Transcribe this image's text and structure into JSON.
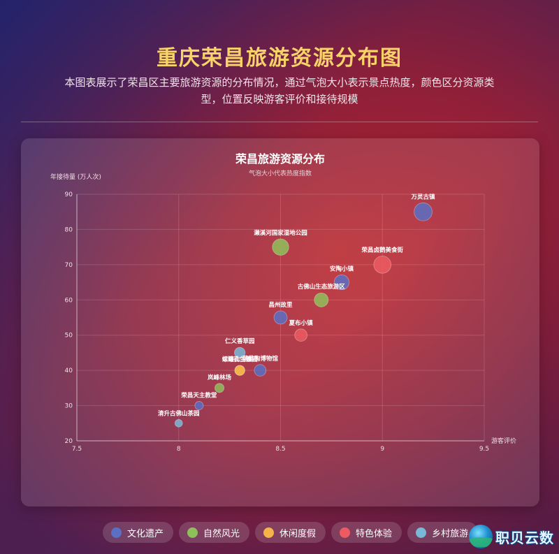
{
  "header": {
    "title": "重庆荣昌旅游资源分布图",
    "subtitle": "本图表展示了荣昌区主要旅游资源的分布情况，通过气泡大小表示景点热度，颜色区分资源类型，位置反映游客评价和接待规模"
  },
  "chart_data": {
    "type": "scatter",
    "title": "荣昌旅游资源分布",
    "subtitle": "气泡大小代表热度指数",
    "xlabel": "游客评价",
    "ylabel": "年接待量 (万人次)",
    "xlim": [
      7.5,
      9.5
    ],
    "ylim": [
      20,
      90
    ],
    "x_ticks": [
      "7.5",
      "8",
      "8.5",
      "9",
      "9.5"
    ],
    "y_ticks": [
      "20",
      "30",
      "40",
      "50",
      "60",
      "70",
      "80",
      "90"
    ],
    "grid": true,
    "legend_position": "bottom",
    "categories": [
      {
        "name": "文化遗产",
        "color": "#5b6fc4"
      },
      {
        "name": "自然风光",
        "color": "#8fbf5a"
      },
      {
        "name": "休闲度假",
        "color": "#f4b44a"
      },
      {
        "name": "特色体验",
        "color": "#ec5b62"
      },
      {
        "name": "乡村旅游",
        "color": "#7ab8d8"
      }
    ],
    "points": [
      {
        "name": "万灵古镇",
        "x": 9.2,
        "y": 85,
        "size": 95,
        "category": "文化遗产"
      },
      {
        "name": "濑溪河国家湿地公园",
        "x": 8.5,
        "y": 75,
        "size": 85,
        "category": "自然风光"
      },
      {
        "name": "荣昌卤鹅美食街",
        "x": 9.0,
        "y": 70,
        "size": 90,
        "category": "特色体验"
      },
      {
        "name": "安陶小镇",
        "x": 8.8,
        "y": 65,
        "size": 75,
        "category": "文化遗产"
      },
      {
        "name": "古佛山生态旅游区",
        "x": 8.7,
        "y": 60,
        "size": 70,
        "category": "自然风光"
      },
      {
        "name": "昌州故里",
        "x": 8.5,
        "y": 55,
        "size": 65,
        "category": "文化遗产"
      },
      {
        "name": "夏布小镇",
        "x": 8.6,
        "y": 50,
        "size": 60,
        "category": "特色体验"
      },
      {
        "name": "仁义香草园",
        "x": 8.3,
        "y": 45,
        "size": 50,
        "category": "乡村旅游"
      },
      {
        "name": "螺罐山生态园",
        "x": 8.3,
        "y": 40,
        "size": 45,
        "category": "休闲度假"
      },
      {
        "name": "荣昌陶博物馆",
        "x": 8.4,
        "y": 40,
        "size": 55,
        "category": "文化遗产"
      },
      {
        "name": "路孔古镇",
        "x": 8.3,
        "y": 40,
        "size": 45,
        "category": "休闲度假"
      },
      {
        "name": "岚峰林场",
        "x": 8.2,
        "y": 35,
        "size": 40,
        "category": "自然风光"
      },
      {
        "name": "荣昌天主教堂",
        "x": 8.1,
        "y": 30,
        "size": 35,
        "category": "文化遗产"
      },
      {
        "name": "清升古佛山茶园",
        "x": 8.0,
        "y": 25,
        "size": 30,
        "category": "乡村旅游"
      }
    ]
  },
  "legend": {
    "items": [
      {
        "label": "文化遗产",
        "color": "#5b6fc4"
      },
      {
        "label": "自然风光",
        "color": "#8fbf5a"
      },
      {
        "label": "休闲度假",
        "color": "#f4b44a"
      },
      {
        "label": "特色体验",
        "color": "#ec5b62"
      },
      {
        "label": "乡村旅游",
        "color": "#7ab8d8"
      }
    ]
  },
  "logo": {
    "text": "职贝云数"
  }
}
